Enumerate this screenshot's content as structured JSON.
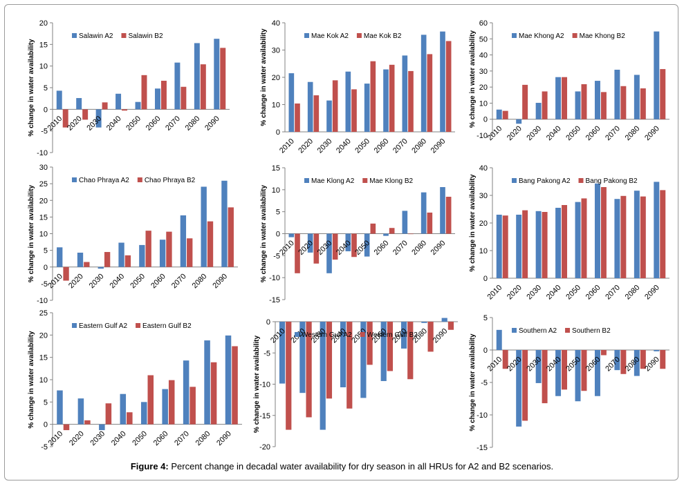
{
  "caption": {
    "label": "Figure 4:",
    "text": "Percent change in decadal water availability for dry season in all HRUs for A2 and B2 scenarios."
  },
  "colors": {
    "a2": "#4f81bd",
    "b2": "#c0504d",
    "axis": "#808080",
    "text": "#000000"
  },
  "chart_data": [
    {
      "type": "bar",
      "panel": "Salawin",
      "ylabel": "% change in water availability",
      "categories": [
        "2010",
        "2020",
        "2030",
        "2040",
        "2050",
        "2060",
        "2070",
        "2080",
        "2090"
      ],
      "ylim": [
        -10,
        20
      ],
      "yticks": [
        -10,
        -5,
        0,
        5,
        10,
        15,
        20
      ],
      "series": [
        {
          "name": "Salawin A2",
          "values": [
            4.3,
            2.6,
            -4.2,
            3.6,
            1.7,
            4.8,
            10.8,
            15.3,
            16.3
          ]
        },
        {
          "name": "Salawin B2",
          "values": [
            -4.2,
            -2.4,
            1.6,
            -0.3,
            7.9,
            6.6,
            5.2,
            10.4,
            14.2
          ]
        }
      ]
    },
    {
      "type": "bar",
      "panel": "Mae Kok",
      "ylabel": "% change in water availability",
      "categories": [
        "2010",
        "2020",
        "2030",
        "2040",
        "2050",
        "2060",
        "2070",
        "2080",
        "2090"
      ],
      "ylim": [
        0,
        40
      ],
      "yticks": [
        0,
        10,
        20,
        30,
        40
      ],
      "series": [
        {
          "name": "Mae Kok A2",
          "values": [
            21.5,
            18.3,
            11.5,
            22.1,
            17.7,
            22.9,
            28.0,
            35.6,
            36.8
          ]
        },
        {
          "name": "Mae Kok B2",
          "values": [
            10.4,
            13.4,
            18.9,
            15.6,
            25.9,
            24.6,
            22.3,
            28.5,
            33.3
          ]
        }
      ]
    },
    {
      "type": "bar",
      "panel": "Mae Khong",
      "ylabel": "% change in water availability",
      "categories": [
        "2010",
        "2020",
        "2030",
        "2040",
        "2050",
        "2060",
        "2070",
        "2080",
        "2090"
      ],
      "ylim": [
        -10,
        60
      ],
      "yticks": [
        -10,
        0,
        10,
        20,
        30,
        40,
        50,
        60
      ],
      "series": [
        {
          "name": "Mae Khong A2",
          "values": [
            6.0,
            -2.8,
            10.2,
            26.2,
            17.3,
            23.9,
            30.8,
            27.6,
            54.6
          ]
        },
        {
          "name": "Mae Khong B2",
          "values": [
            5.2,
            21.4,
            17.3,
            26.2,
            21.8,
            16.9,
            20.6,
            19.2,
            31.2
          ]
        }
      ]
    },
    {
      "type": "bar",
      "panel": "Chao Phraya",
      "ylabel": "% change in water availability",
      "categories": [
        "2010",
        "2020",
        "2030",
        "2040",
        "2050",
        "2060",
        "2070",
        "2080",
        "2090"
      ],
      "ylim": [
        -10,
        30
      ],
      "yticks": [
        -10,
        -5,
        0,
        5,
        10,
        15,
        20,
        25,
        30
      ],
      "series": [
        {
          "name": "Chao Phraya A2",
          "values": [
            5.9,
            4.3,
            -0.5,
            7.3,
            6.6,
            8.2,
            15.5,
            24.1,
            25.9
          ]
        },
        {
          "name": "Chao Phraya B2",
          "values": [
            -4.1,
            1.5,
            4.5,
            3.5,
            10.9,
            10.6,
            8.6,
            13.7,
            17.9
          ]
        }
      ]
    },
    {
      "type": "bar",
      "panel": "Mae Klong",
      "ylabel": "% change in water availability",
      "categories": [
        "2010",
        "2020",
        "2030",
        "2040",
        "2050",
        "2060",
        "2070",
        "2080",
        "2090"
      ],
      "ylim": [
        -15,
        15
      ],
      "yticks": [
        -15,
        -10,
        -5,
        0,
        5,
        10,
        15
      ],
      "series": [
        {
          "name": "Mae Klong A2",
          "values": [
            -0.8,
            -4.3,
            -9.0,
            -4.0,
            -5.2,
            -0.5,
            5.2,
            9.4,
            10.6
          ]
        },
        {
          "name": "Mae Klong B2",
          "values": [
            -9.0,
            -6.8,
            -5.9,
            -5.3,
            2.3,
            1.3,
            -0.1,
            4.8,
            8.4
          ]
        }
      ]
    },
    {
      "type": "bar",
      "panel": "Bang Pakong",
      "ylabel": "% change in water availability",
      "categories": [
        "2010",
        "2020",
        "2030",
        "2040",
        "2050",
        "2060",
        "2070",
        "2080",
        "2090"
      ],
      "ylim": [
        0,
        40
      ],
      "yticks": [
        0,
        10,
        20,
        30,
        40
      ],
      "series": [
        {
          "name": "Bang Pakong A2",
          "values": [
            23.0,
            23.0,
            24.3,
            25.5,
            27.6,
            34.3,
            28.7,
            31.7,
            34.9
          ]
        },
        {
          "name": "Bang Pakong B2",
          "values": [
            22.7,
            24.6,
            24.0,
            26.5,
            28.9,
            33.0,
            29.8,
            29.6,
            31.9
          ]
        }
      ]
    },
    {
      "type": "bar",
      "panel": "Eastern Gulf",
      "ylabel": "% change in water availability",
      "categories": [
        "2010",
        "2020",
        "2030",
        "2040",
        "2050",
        "2060",
        "2070",
        "2080",
        "2090"
      ],
      "ylim": [
        -5,
        25
      ],
      "yticks": [
        -5,
        0,
        5,
        10,
        15,
        20,
        25
      ],
      "series": [
        {
          "name": "Eastern Gulf A2",
          "values": [
            7.6,
            5.8,
            -1.3,
            6.8,
            5.0,
            7.9,
            14.3,
            18.8,
            19.9
          ]
        },
        {
          "name": "Eastern Gulf B2",
          "values": [
            -1.3,
            0.9,
            4.7,
            2.7,
            11.0,
            9.9,
            8.4,
            13.9,
            17.5
          ]
        }
      ]
    },
    {
      "type": "bar",
      "panel": "Western Gulf",
      "ylabel": "% change in water availability",
      "categories": [
        "2010",
        "2020",
        "2030",
        "2040",
        "2050",
        "2060",
        "2070",
        "2080",
        "2090"
      ],
      "ylim": [
        -20,
        0
      ],
      "yticks": [
        -20,
        -15,
        -10,
        -5,
        0
      ],
      "series": [
        {
          "name": "Western Gulf A2",
          "values": [
            -9.9,
            -11.4,
            -17.3,
            -10.5,
            -12.2,
            -9.5,
            -4.3,
            -0.2,
            0.6
          ]
        },
        {
          "name": "Western Gulf B2",
          "values": [
            -17.3,
            -15.3,
            -12.3,
            -13.9,
            -6.9,
            -7.9,
            -9.2,
            -4.8,
            -1.3
          ]
        }
      ]
    },
    {
      "type": "bar",
      "panel": "Southern",
      "ylabel": "% change in water availability",
      "categories": [
        "2010",
        "2020",
        "2030",
        "2040",
        "2050",
        "2060",
        "2070",
        "2080",
        "2090"
      ],
      "ylim": [
        -15,
        5
      ],
      "yticks": [
        -15,
        -10,
        -5,
        0,
        5
      ],
      "series": [
        {
          "name": "Southern A2",
          "values": [
            3.1,
            -11.8,
            -5.1,
            -7.1,
            -7.9,
            -7.1,
            -3.1,
            -4.0,
            -0.2
          ]
        },
        {
          "name": "Southern B2",
          "values": [
            -2.9,
            -10.9,
            -8.2,
            -6.1,
            -6.3,
            -0.8,
            -3.7,
            -2.9,
            -2.9
          ]
        }
      ]
    }
  ]
}
